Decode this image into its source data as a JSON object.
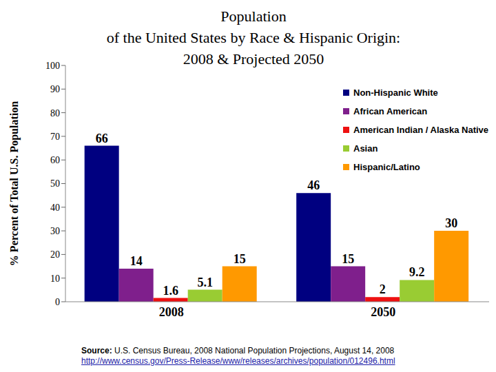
{
  "chart_data": {
    "type": "bar",
    "title": "Population",
    "subtitle": [
      "of the United States by Race & Hispanic Origin:",
      "2008 & Projected 2050"
    ],
    "y_label": "% Percent of Total U.S. Population",
    "categories": [
      "2008",
      "2050"
    ],
    "series": [
      {
        "name": "Non-Hispanic White",
        "color": "#000080",
        "values": [
          66,
          46
        ]
      },
      {
        "name": "African American",
        "color": "#7f1f8c",
        "values": [
          14,
          15
        ]
      },
      {
        "name": "American Indian / Alaska Native",
        "color": "#ee1111",
        "values": [
          1.6,
          2
        ]
      },
      {
        "name": "Asian",
        "color": "#99cc33",
        "values": [
          5.1,
          9.2
        ]
      },
      {
        "name": "Hispanic/Latino",
        "color": "#ff9900",
        "values": [
          15,
          30
        ]
      }
    ],
    "ylim": [
      0,
      100
    ],
    "yticks": [
      0,
      10,
      20,
      30,
      40,
      50,
      60,
      70,
      80,
      90,
      100
    ],
    "grid": false,
    "data_labels": true,
    "legend": "upper right",
    "source_label": "Source:",
    "source": "U.S. Census Bureau, 2008 National Population Projections, August 14, 2008",
    "source_url": "http://www.census.gov/Press-Release/www/releases/archives/population/012496.html"
  }
}
